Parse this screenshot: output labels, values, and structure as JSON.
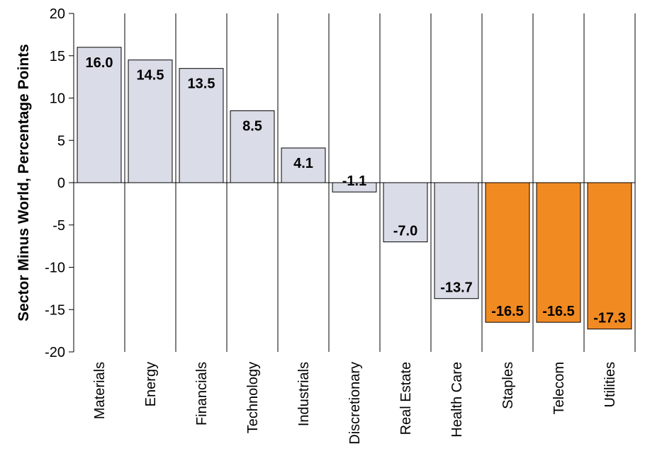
{
  "chart_data": {
    "type": "bar",
    "title": "",
    "xlabel": "",
    "ylabel": "Sector Minus World, Percentage Points",
    "ylim": [
      -20,
      20
    ],
    "yticks": [
      20,
      15,
      10,
      5,
      0,
      -5,
      -10,
      -15,
      -20
    ],
    "grid": "vertical category separators",
    "legend": "none",
    "categories": [
      "Materials",
      "Energy",
      "Financials",
      "Technology",
      "Industrials",
      "Discretionary",
      "Real Estate",
      "Health Care",
      "Staples",
      "Telecom",
      "Utilities"
    ],
    "values": [
      16.0,
      14.5,
      13.5,
      8.5,
      4.1,
      -1.1,
      -7.0,
      -13.7,
      -16.5,
      -16.5,
      -17.3
    ],
    "value_labels": [
      "16.0",
      "14.5",
      "13.5",
      "8.5",
      "4.1",
      "-1.1",
      "-7.0",
      "-13.7",
      "-16.5",
      "-16.5",
      "-17.3"
    ],
    "highlighted": [
      false,
      false,
      false,
      false,
      false,
      false,
      false,
      false,
      true,
      true,
      true
    ],
    "colors": {
      "default_bar": "#dadde8",
      "highlight_bar": "#f28a22",
      "bar_outline": "#000000",
      "axis": "#000000"
    }
  }
}
